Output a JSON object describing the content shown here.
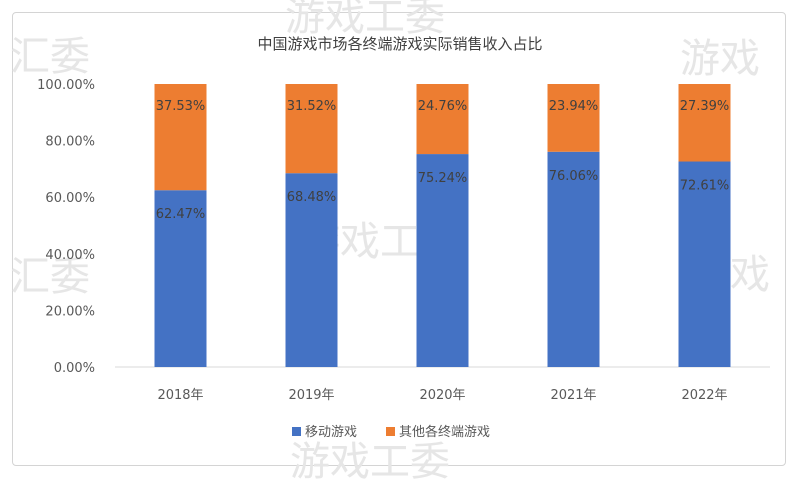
{
  "chart_data": {
    "type": "bar",
    "stacked": true,
    "title": "中国游戏市场各终端游戏实际销售收入占比",
    "categories": [
      "2018年",
      "2019年",
      "2020年",
      "2021年",
      "2022年"
    ],
    "series": [
      {
        "name": "移动游戏",
        "color": "#4472c4",
        "values": [
          62.47,
          68.48,
          75.24,
          76.06,
          72.61
        ],
        "labels": [
          "62.47%",
          "68.48%",
          "75.24%",
          "76.06%",
          "72.61%"
        ]
      },
      {
        "name": "其他各终端游戏",
        "color": "#ed7d31",
        "values": [
          37.53,
          31.52,
          24.76,
          23.94,
          27.39
        ],
        "labels": [
          "37.53%",
          "31.52%",
          "24.76%",
          "23.94%",
          "27.39%"
        ]
      }
    ],
    "ylim": [
      0,
      100
    ],
    "yticks": [
      "0.00%",
      "20.00%",
      "40.00%",
      "60.00%",
      "80.00%",
      "100.00%"
    ],
    "grid": false,
    "legend": "bottom"
  },
  "watermark": {
    "texts": [
      "汇委",
      "游戏工委",
      "游戏",
      "游戏工委",
      "汇委",
      "游戏",
      "游戏工委"
    ]
  }
}
